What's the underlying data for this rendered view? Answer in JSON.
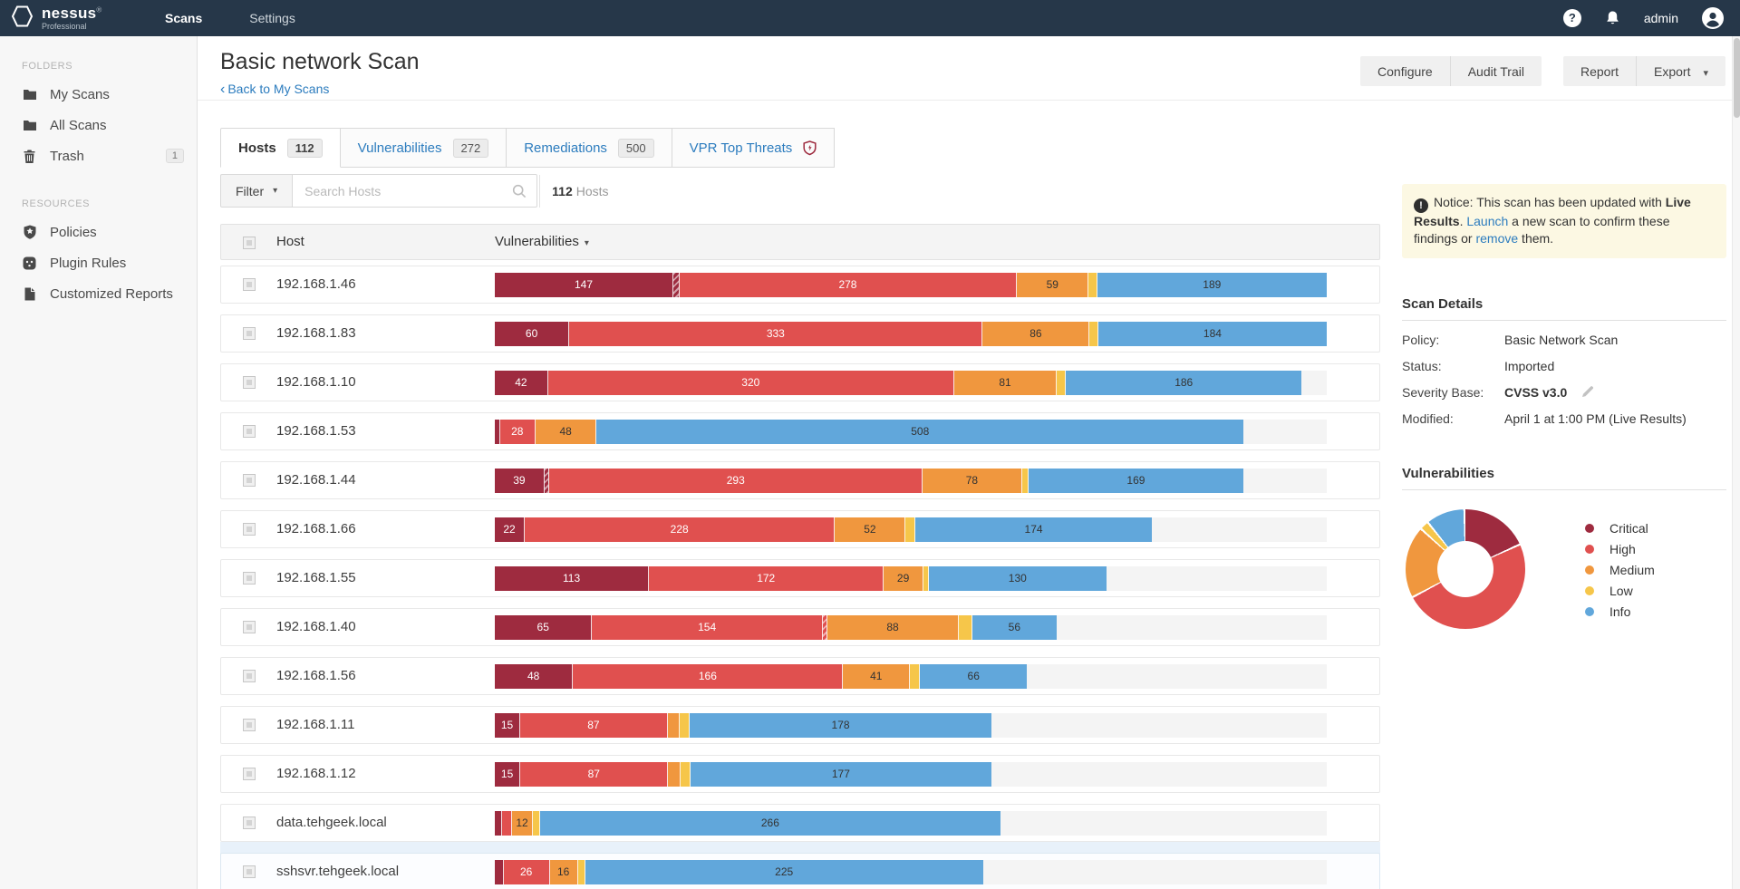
{
  "topbar": {
    "brand": "nessus",
    "brand_mark": "®",
    "brand_sub": "Professional",
    "nav": [
      {
        "label": "Scans",
        "active": true
      },
      {
        "label": "Settings",
        "active": false
      }
    ],
    "user": "admin"
  },
  "sidebar": {
    "sections": [
      {
        "title": "FOLDERS",
        "items": [
          {
            "label": "My Scans",
            "icon": "folder-icon"
          },
          {
            "label": "All Scans",
            "icon": "folder-icon"
          },
          {
            "label": "Trash",
            "icon": "trash-icon",
            "badge": "1"
          }
        ]
      },
      {
        "title": "RESOURCES",
        "items": [
          {
            "label": "Policies",
            "icon": "shield-star-icon"
          },
          {
            "label": "Plugin Rules",
            "icon": "plug-icon"
          },
          {
            "label": "Customized Reports",
            "icon": "document-icon"
          }
        ]
      }
    ]
  },
  "header": {
    "title": "Basic network Scan",
    "back_chevron": "‹",
    "back_label": "Back to My Scans",
    "buttons": {
      "configure": "Configure",
      "audit_trail": "Audit Trail",
      "report": "Report",
      "export": "Export"
    }
  },
  "tabs": [
    {
      "label": "Hosts",
      "badge": "112",
      "active": true
    },
    {
      "label": "Vulnerabilities",
      "badge": "272",
      "active": false
    },
    {
      "label": "Remediations",
      "badge": "500",
      "active": false
    },
    {
      "label": "VPR Top Threats",
      "badge": null,
      "icon": "vpr-shield-icon",
      "active": false
    }
  ],
  "filter_bar": {
    "filter_label": "Filter",
    "search_placeholder": "Search Hosts",
    "count": "112",
    "count_suffix": "Hosts"
  },
  "table": {
    "columns": [
      "Host",
      "Vulnerabilities"
    ],
    "rows": [
      {
        "host": "192.168.1.46",
        "fill": 1.0,
        "segments": [
          {
            "sev": "critical",
            "value": 147
          },
          {
            "sev": "critical",
            "w": 5,
            "striped": true
          },
          {
            "sev": "high",
            "value": 278
          },
          {
            "sev": "medium",
            "value": 59
          },
          {
            "sev": "low",
            "w": 7
          },
          {
            "sev": "info",
            "value": 189
          }
        ]
      },
      {
        "host": "192.168.1.83",
        "fill": 1.0,
        "segments": [
          {
            "sev": "critical",
            "value": 60
          },
          {
            "sev": "high",
            "value": 333
          },
          {
            "sev": "medium",
            "value": 86
          },
          {
            "sev": "low",
            "w": 7
          },
          {
            "sev": "info",
            "value": 184
          }
        ]
      },
      {
        "host": "192.168.1.10",
        "fill": 0.97,
        "segments": [
          {
            "sev": "critical",
            "value": 42
          },
          {
            "sev": "high",
            "value": 320
          },
          {
            "sev": "medium",
            "value": 81
          },
          {
            "sev": "low",
            "w": 7
          },
          {
            "sev": "info",
            "value": 186
          }
        ]
      },
      {
        "host": "192.168.1.53",
        "fill": 0.9,
        "segments": [
          {
            "sev": "critical",
            "w": 4
          },
          {
            "sev": "high",
            "value": 28
          },
          {
            "sev": "medium",
            "value": 48
          },
          {
            "sev": "info",
            "value": 508
          }
        ]
      },
      {
        "host": "192.168.1.44",
        "fill": 0.9,
        "segments": [
          {
            "sev": "critical",
            "value": 39
          },
          {
            "sev": "critical",
            "w": 4,
            "striped": true
          },
          {
            "sev": "high",
            "value": 293
          },
          {
            "sev": "medium",
            "value": 78
          },
          {
            "sev": "low",
            "w": 5
          },
          {
            "sev": "info",
            "value": 169
          }
        ]
      },
      {
        "host": "192.168.1.66",
        "fill": 0.79,
        "segments": [
          {
            "sev": "critical",
            "value": 22
          },
          {
            "sev": "high",
            "value": 228
          },
          {
            "sev": "medium",
            "value": 52
          },
          {
            "sev": "low",
            "w": 7
          },
          {
            "sev": "info",
            "value": 174
          }
        ]
      },
      {
        "host": "192.168.1.55",
        "fill": 0.735,
        "segments": [
          {
            "sev": "critical",
            "value": 113
          },
          {
            "sev": "high",
            "value": 172
          },
          {
            "sev": "medium",
            "value": 29
          },
          {
            "sev": "low",
            "w": 4
          },
          {
            "sev": "info",
            "value": 130
          }
        ]
      },
      {
        "host": "192.168.1.40",
        "fill": 0.675,
        "segments": [
          {
            "sev": "critical",
            "value": 65
          },
          {
            "sev": "high",
            "value": 154
          },
          {
            "sev": "high",
            "w": 3,
            "striped": true
          },
          {
            "sev": "medium",
            "value": 88
          },
          {
            "sev": "low",
            "w": 9
          },
          {
            "sev": "info",
            "value": 56
          }
        ]
      },
      {
        "host": "192.168.1.56",
        "fill": 0.64,
        "segments": [
          {
            "sev": "critical",
            "value": 48
          },
          {
            "sev": "high",
            "value": 166
          },
          {
            "sev": "medium",
            "value": 41
          },
          {
            "sev": "low",
            "w": 6
          },
          {
            "sev": "info",
            "value": 66
          }
        ]
      },
      {
        "host": "192.168.1.11",
        "fill": 0.597,
        "segments": [
          {
            "sev": "critical",
            "value": 15
          },
          {
            "sev": "high",
            "value": 87
          },
          {
            "sev": "medium",
            "w": 7
          },
          {
            "sev": "low",
            "w": 6
          },
          {
            "sev": "info",
            "value": 178
          }
        ]
      },
      {
        "host": "192.168.1.12",
        "fill": 0.597,
        "segments": [
          {
            "sev": "critical",
            "value": 15
          },
          {
            "sev": "high",
            "value": 87
          },
          {
            "sev": "medium",
            "w": 7
          },
          {
            "sev": "low",
            "w": 6
          },
          {
            "sev": "info",
            "value": 177
          }
        ]
      },
      {
        "host": "data.tehgeek.local",
        "fill": 0.608,
        "segments": [
          {
            "sev": "critical",
            "w": 4
          },
          {
            "sev": "high",
            "w": 6
          },
          {
            "sev": "medium",
            "value": 12
          },
          {
            "sev": "low",
            "w": 4
          },
          {
            "sev": "info",
            "value": 266
          }
        ]
      },
      {
        "host": "sshsvr.tehgeek.local",
        "fill": 0.587,
        "highlight": true,
        "segments": [
          {
            "sev": "critical",
            "w": 5
          },
          {
            "sev": "high",
            "value": 26
          },
          {
            "sev": "medium",
            "value": 16
          },
          {
            "sev": "low",
            "w": 4
          },
          {
            "sev": "info",
            "value": 225
          }
        ]
      }
    ]
  },
  "severity_colors": {
    "critical": "#9e2b3f",
    "high": "#e0504f",
    "medium": "#f0973e",
    "low": "#f6c64a",
    "info": "#61a7db"
  },
  "notice": {
    "prefix": "Notice: This scan has been updated with ",
    "bold": "Live Results",
    "mid1": ". ",
    "link1": "Launch",
    "mid2": " a new scan to confirm these findings or ",
    "link2": "remove",
    "suffix": " them."
  },
  "scan_details": {
    "title": "Scan Details",
    "rows": [
      {
        "label": "Policy:",
        "value": "Basic Network Scan"
      },
      {
        "label": "Status:",
        "value": "Imported"
      },
      {
        "label": "Severity Base:",
        "value": "CVSS v3.0",
        "bold": true,
        "editable": true
      },
      {
        "label": "Modified:",
        "value": "April 1 at 1:00 PM (Live Results)"
      }
    ]
  },
  "vuln_panel": {
    "title": "Vulnerabilities"
  },
  "chart_data": {
    "type": "pie",
    "title": "Vulnerabilities",
    "labels": [
      "Critical",
      "High",
      "Medium",
      "Low",
      "Info"
    ],
    "values_pct": [
      18.5,
      49.0,
      19.5,
      2.5,
      10.5
    ],
    "colors": [
      "#9e2b3f",
      "#e0504f",
      "#f0973e",
      "#f6c64a",
      "#61a7db"
    ],
    "donut": true,
    "legend_position": "right"
  }
}
